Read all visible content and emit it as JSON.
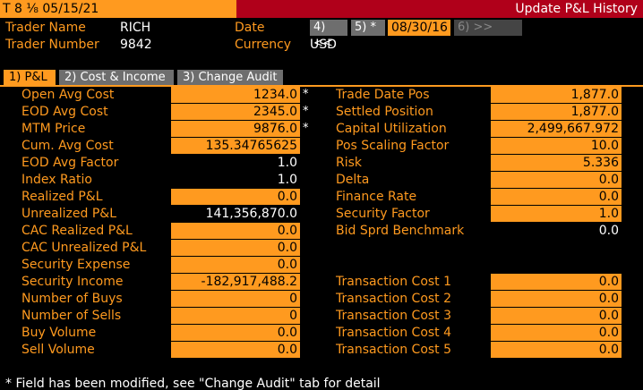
{
  "titlebar": {
    "left_text": "T 8 ⅛ 05/15/21",
    "right_text": "Update P&L History"
  },
  "header": {
    "trader_name_label": "Trader Name",
    "trader_name_value": "RICH",
    "trader_number_label": "Trader Number",
    "trader_number_value": "9842",
    "date_label": "Date",
    "currency_label": "Currency",
    "currency_value": "USD",
    "prev_button": "4) <<",
    "star_button": "5) *",
    "date_value": "08/30/16",
    "next_button": "6) >>"
  },
  "tabs": [
    {
      "label": "1) P&L",
      "active": true
    },
    {
      "label": "2) Cost & Income",
      "active": false
    },
    {
      "label": "3) Change Audit",
      "active": false
    }
  ],
  "left_fields": [
    {
      "label": "Open Avg Cost",
      "value": "1234.0",
      "style": "field",
      "modified": true
    },
    {
      "label": "EOD Avg Cost",
      "value": "2345.0",
      "style": "field",
      "modified": true
    },
    {
      "label": "MTM Price",
      "value": "9876.0",
      "style": "field",
      "modified": true
    },
    {
      "label": "Cum. Avg Cost",
      "value": "135.34765625",
      "style": "field",
      "modified": false
    },
    {
      "label": "EOD Avg Factor",
      "value": "1.0",
      "style": "plain",
      "modified": false
    },
    {
      "label": "Index Ratio",
      "value": "1.0",
      "style": "plain",
      "modified": false
    },
    {
      "label": "Realized P&L",
      "value": "0.0",
      "style": "field",
      "modified": false
    },
    {
      "label": "Unrealized P&L",
      "value": "141,356,870.0",
      "style": "plain",
      "modified": false
    },
    {
      "label": "CAC Realized P&L",
      "value": "0.0",
      "style": "field",
      "modified": false
    },
    {
      "label": "CAC Unrealized P&L",
      "value": "0.0",
      "style": "field",
      "modified": false
    },
    {
      "label": "Security Expense",
      "value": "0.0",
      "style": "field",
      "modified": false
    },
    {
      "label": "Security Income",
      "value": "-182,917,488.2",
      "style": "field",
      "modified": false
    },
    {
      "label": "Number of Buys",
      "value": "0",
      "style": "field",
      "modified": false
    },
    {
      "label": "Number of Sells",
      "value": "0",
      "style": "field",
      "modified": false
    },
    {
      "label": "Buy Volume",
      "value": "0.0",
      "style": "field",
      "modified": false
    },
    {
      "label": "Sell Volume",
      "value": "0.0",
      "style": "field",
      "modified": false
    }
  ],
  "right_fields": [
    {
      "label": "Trade Date Pos",
      "value": "1,877.0",
      "style": "field"
    },
    {
      "label": "Settled Position",
      "value": "1,877.0",
      "style": "field"
    },
    {
      "label": "Capital Utilization",
      "value": "2,499,667.972",
      "style": "field"
    },
    {
      "label": "Pos Scaling Factor",
      "value": "10.0",
      "style": "field"
    },
    {
      "label": "Risk",
      "value": "5.336",
      "style": "field"
    },
    {
      "label": "Delta",
      "value": "0.0",
      "style": "field"
    },
    {
      "label": "Finance Rate",
      "value": "0.0",
      "style": "field"
    },
    {
      "label": "Security Factor",
      "value": "1.0",
      "style": "field"
    },
    {
      "label": "Bid Sprd Benchmark",
      "value": "0.0",
      "style": "plain"
    }
  ],
  "transaction_costs": [
    {
      "label": "Transaction Cost 1",
      "value": "0.0"
    },
    {
      "label": "Transaction Cost 2",
      "value": "0.0"
    },
    {
      "label": "Transaction Cost 3",
      "value": "0.0"
    },
    {
      "label": "Transaction Cost 4",
      "value": "0.0"
    },
    {
      "label": "Transaction Cost 5",
      "value": "0.0"
    }
  ],
  "modified_marker": "*",
  "footer": "* Field has been modified, see \"Change Audit\" tab for detail",
  "colors": {
    "accent": "#ff9a1f",
    "title_red": "#b0001a",
    "background": "#000000"
  }
}
